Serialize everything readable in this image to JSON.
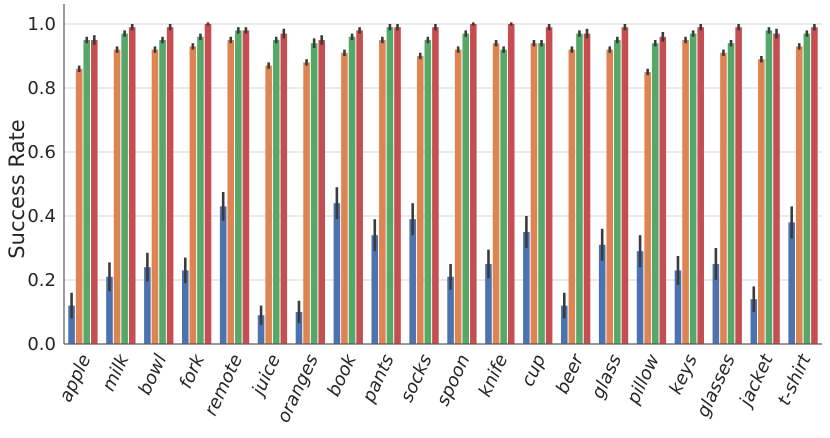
{
  "chart_data": {
    "type": "bar",
    "title": "",
    "xlabel": "",
    "ylabel": "Success Rate",
    "ylim": [
      0,
      1.05
    ],
    "yticks": [
      "0.0",
      "0.2",
      "0.4",
      "0.6",
      "0.8",
      "1.0"
    ],
    "grid": "horizontal",
    "legend": "none",
    "categories": [
      "apple",
      "milk",
      "bowl",
      "fork",
      "remote",
      "juice",
      "oranges",
      "book",
      "pants",
      "socks",
      "spoon",
      "knife",
      "cup",
      "beer",
      "glass",
      "pillow",
      "keys",
      "glasses",
      "jacket",
      "t-shirt"
    ],
    "colors": [
      "#4c72b0",
      "#dd8452",
      "#55a868",
      "#c44e52"
    ],
    "series": [
      {
        "values": [
          0.12,
          0.21,
          0.24,
          0.23,
          0.43,
          0.09,
          0.1,
          0.44,
          0.34,
          0.39,
          0.21,
          0.25,
          0.35,
          0.12,
          0.31,
          0.29,
          0.23,
          0.25,
          0.14,
          0.38
        ],
        "errors": [
          0.04,
          0.045,
          0.045,
          0.04,
          0.045,
          0.03,
          0.035,
          0.05,
          0.05,
          0.05,
          0.04,
          0.045,
          0.05,
          0.04,
          0.05,
          0.05,
          0.045,
          0.05,
          0.04,
          0.05
        ]
      },
      {
        "values": [
          0.86,
          0.92,
          0.92,
          0.93,
          0.95,
          0.87,
          0.88,
          0.91,
          0.95,
          0.9,
          0.92,
          0.94,
          0.94,
          0.92,
          0.92,
          0.85,
          0.95,
          0.91,
          0.89,
          0.93
        ],
        "errors": [
          0.01,
          0.01,
          0.01,
          0.01,
          0.01,
          0.01,
          0.01,
          0.01,
          0.01,
          0.01,
          0.01,
          0.01,
          0.01,
          0.01,
          0.01,
          0.01,
          0.01,
          0.01,
          0.01,
          0.01
        ]
      },
      {
        "values": [
          0.95,
          0.97,
          0.95,
          0.96,
          0.98,
          0.95,
          0.94,
          0.96,
          0.99,
          0.95,
          0.97,
          0.92,
          0.94,
          0.97,
          0.95,
          0.94,
          0.97,
          0.94,
          0.98,
          0.97
        ],
        "errors": [
          0.01,
          0.01,
          0.01,
          0.01,
          0.01,
          0.01,
          0.015,
          0.01,
          0.01,
          0.01,
          0.01,
          0.01,
          0.01,
          0.01,
          0.01,
          0.01,
          0.01,
          0.01,
          0.01,
          0.01
        ]
      },
      {
        "values": [
          0.95,
          0.99,
          0.99,
          1.0,
          0.98,
          0.97,
          0.95,
          0.98,
          0.99,
          0.99,
          1.0,
          1.0,
          0.99,
          0.97,
          0.99,
          0.96,
          0.99,
          0.99,
          0.97,
          0.99
        ],
        "errors": [
          0.015,
          0.01,
          0.01,
          0.005,
          0.01,
          0.015,
          0.015,
          0.01,
          0.01,
          0.01,
          0.005,
          0.005,
          0.01,
          0.015,
          0.01,
          0.015,
          0.01,
          0.01,
          0.015,
          0.01
        ]
      }
    ]
  }
}
